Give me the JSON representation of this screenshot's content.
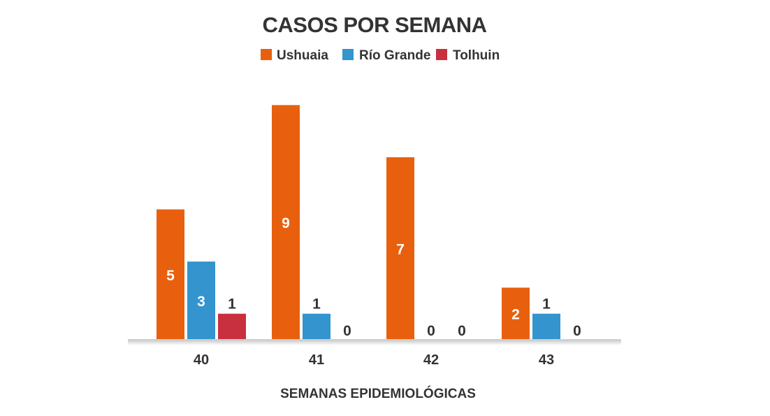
{
  "chart_data": {
    "type": "bar",
    "title": "CASOS POR SEMANA",
    "xlabel": "SEMANAS EPIDEMIOLÓGICAS",
    "ylabel": "",
    "categories": [
      "40",
      "41",
      "42",
      "43"
    ],
    "series": [
      {
        "name": "Ushuaia",
        "color": "#E8600E",
        "values": [
          5,
          9,
          7,
          2
        ]
      },
      {
        "name": "Río Grande",
        "color": "#3394CE",
        "values": [
          3,
          1,
          0,
          1
        ]
      },
      {
        "name": "Tolhuin",
        "color": "#C8303F",
        "values": [
          1,
          0,
          0,
          0
        ]
      }
    ],
    "ylim": [
      0,
      9
    ],
    "grid": false,
    "legend_position": "top-center",
    "data_labels": true
  }
}
